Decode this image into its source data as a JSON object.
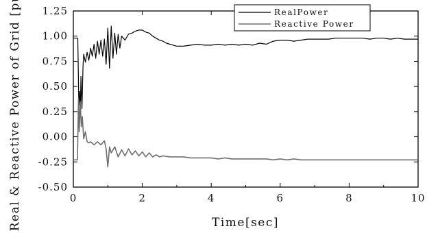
{
  "chart_data": {
    "type": "line",
    "title": "",
    "xlabel": "Time[sec]",
    "ylabel": "Real & Reactive Power of Grid [pu]",
    "xlim": [
      0,
      10
    ],
    "ylim": [
      -0.5,
      1.25
    ],
    "xticks": [
      "0",
      "2",
      "4",
      "6",
      "8",
      "10"
    ],
    "yticks": [
      "1.25",
      "1.00",
      "0.75",
      "0.50",
      "0.25",
      "0.00",
      "-0.25",
      "-0.50"
    ],
    "grid": false,
    "legend_position": "top-right",
    "series": [
      {
        "name": "RealPower",
        "color": "#000000",
        "x": [
          0,
          0.1,
          0.13,
          0.16,
          0.18,
          0.2,
          0.22,
          0.25,
          0.28,
          0.3,
          0.35,
          0.4,
          0.45,
          0.5,
          0.55,
          0.6,
          0.65,
          0.7,
          0.75,
          0.8,
          0.85,
          0.9,
          0.95,
          1.0,
          1.05,
          1.1,
          1.15,
          1.2,
          1.25,
          1.3,
          1.35,
          1.4,
          1.5,
          1.6,
          1.7,
          1.8,
          1.9,
          2.0,
          2.1,
          2.2,
          2.3,
          2.4,
          2.5,
          2.6,
          2.7,
          2.8,
          2.9,
          3.0,
          3.2,
          3.4,
          3.6,
          3.8,
          4.0,
          4.2,
          4.4,
          4.6,
          4.8,
          5.0,
          5.2,
          5.4,
          5.6,
          5.8,
          6.0,
          6.2,
          6.4,
          6.6,
          6.8,
          7.0,
          7.2,
          7.4,
          7.6,
          7.8,
          8.0,
          8.2,
          8.4,
          8.6,
          8.8,
          9.0,
          9.2,
          9.4,
          9.6,
          9.8,
          10.0
        ],
        "y": [
          0.98,
          0.98,
          0.98,
          0.3,
          0.45,
          0.2,
          0.6,
          0.28,
          0.7,
          0.82,
          0.74,
          0.84,
          0.76,
          0.88,
          0.8,
          0.92,
          0.78,
          0.95,
          0.82,
          0.96,
          0.8,
          0.97,
          0.72,
          1.08,
          0.68,
          1.1,
          0.78,
          1.03,
          0.82,
          1.02,
          0.88,
          1.0,
          0.96,
          1.02,
          1.03,
          1.05,
          1.06,
          1.06,
          1.04,
          1.03,
          1.0,
          0.98,
          0.96,
          0.95,
          0.93,
          0.92,
          0.91,
          0.9,
          0.9,
          0.91,
          0.92,
          0.91,
          0.91,
          0.92,
          0.91,
          0.92,
          0.91,
          0.92,
          0.91,
          0.93,
          0.92,
          0.95,
          0.96,
          0.96,
          0.95,
          0.96,
          0.97,
          0.97,
          0.97,
          0.97,
          0.98,
          0.98,
          0.98,
          0.98,
          0.98,
          0.97,
          0.98,
          0.98,
          0.97,
          0.98,
          0.97,
          0.97,
          0.97
        ]
      },
      {
        "name": "Reactive Power",
        "color": "#6e6e6e",
        "x": [
          0,
          0.1,
          0.12,
          0.15,
          0.17,
          0.2,
          0.23,
          0.26,
          0.3,
          0.35,
          0.4,
          0.45,
          0.5,
          0.6,
          0.7,
          0.8,
          0.9,
          0.95,
          1.0,
          1.05,
          1.1,
          1.2,
          1.3,
          1.4,
          1.5,
          1.6,
          1.7,
          1.8,
          1.9,
          2.0,
          2.1,
          2.2,
          2.3,
          2.4,
          2.5,
          2.6,
          2.8,
          3.0,
          3.2,
          3.4,
          3.6,
          3.8,
          4.0,
          4.2,
          4.4,
          4.6,
          4.8,
          5.0,
          5.2,
          5.4,
          5.6,
          5.8,
          6.0,
          6.2,
          6.4,
          6.6,
          6.8,
          7.0,
          7.2,
          7.4,
          7.6,
          7.8,
          8.0,
          8.2,
          8.4,
          8.6,
          8.8,
          9.0,
          9.2,
          9.4,
          9.6,
          9.8,
          10.0
        ],
        "y": [
          -0.23,
          -0.23,
          -0.23,
          0.38,
          0.05,
          0.35,
          0.1,
          0.2,
          -0.02,
          0.05,
          -0.05,
          -0.06,
          -0.05,
          -0.08,
          -0.05,
          -0.08,
          -0.04,
          -0.12,
          -0.3,
          -0.1,
          -0.16,
          -0.1,
          -0.2,
          -0.13,
          -0.19,
          -0.12,
          -0.18,
          -0.14,
          -0.19,
          -0.15,
          -0.2,
          -0.16,
          -0.2,
          -0.18,
          -0.2,
          -0.19,
          -0.2,
          -0.2,
          -0.2,
          -0.21,
          -0.21,
          -0.21,
          -0.21,
          -0.22,
          -0.21,
          -0.22,
          -0.22,
          -0.22,
          -0.22,
          -0.22,
          -0.22,
          -0.23,
          -0.22,
          -0.23,
          -0.22,
          -0.23,
          -0.23,
          -0.23,
          -0.23,
          -0.23,
          -0.23,
          -0.23,
          -0.23,
          -0.23,
          -0.23,
          -0.23,
          -0.23,
          -0.23,
          -0.23,
          -0.23,
          -0.23,
          -0.23,
          -0.23
        ]
      }
    ]
  }
}
